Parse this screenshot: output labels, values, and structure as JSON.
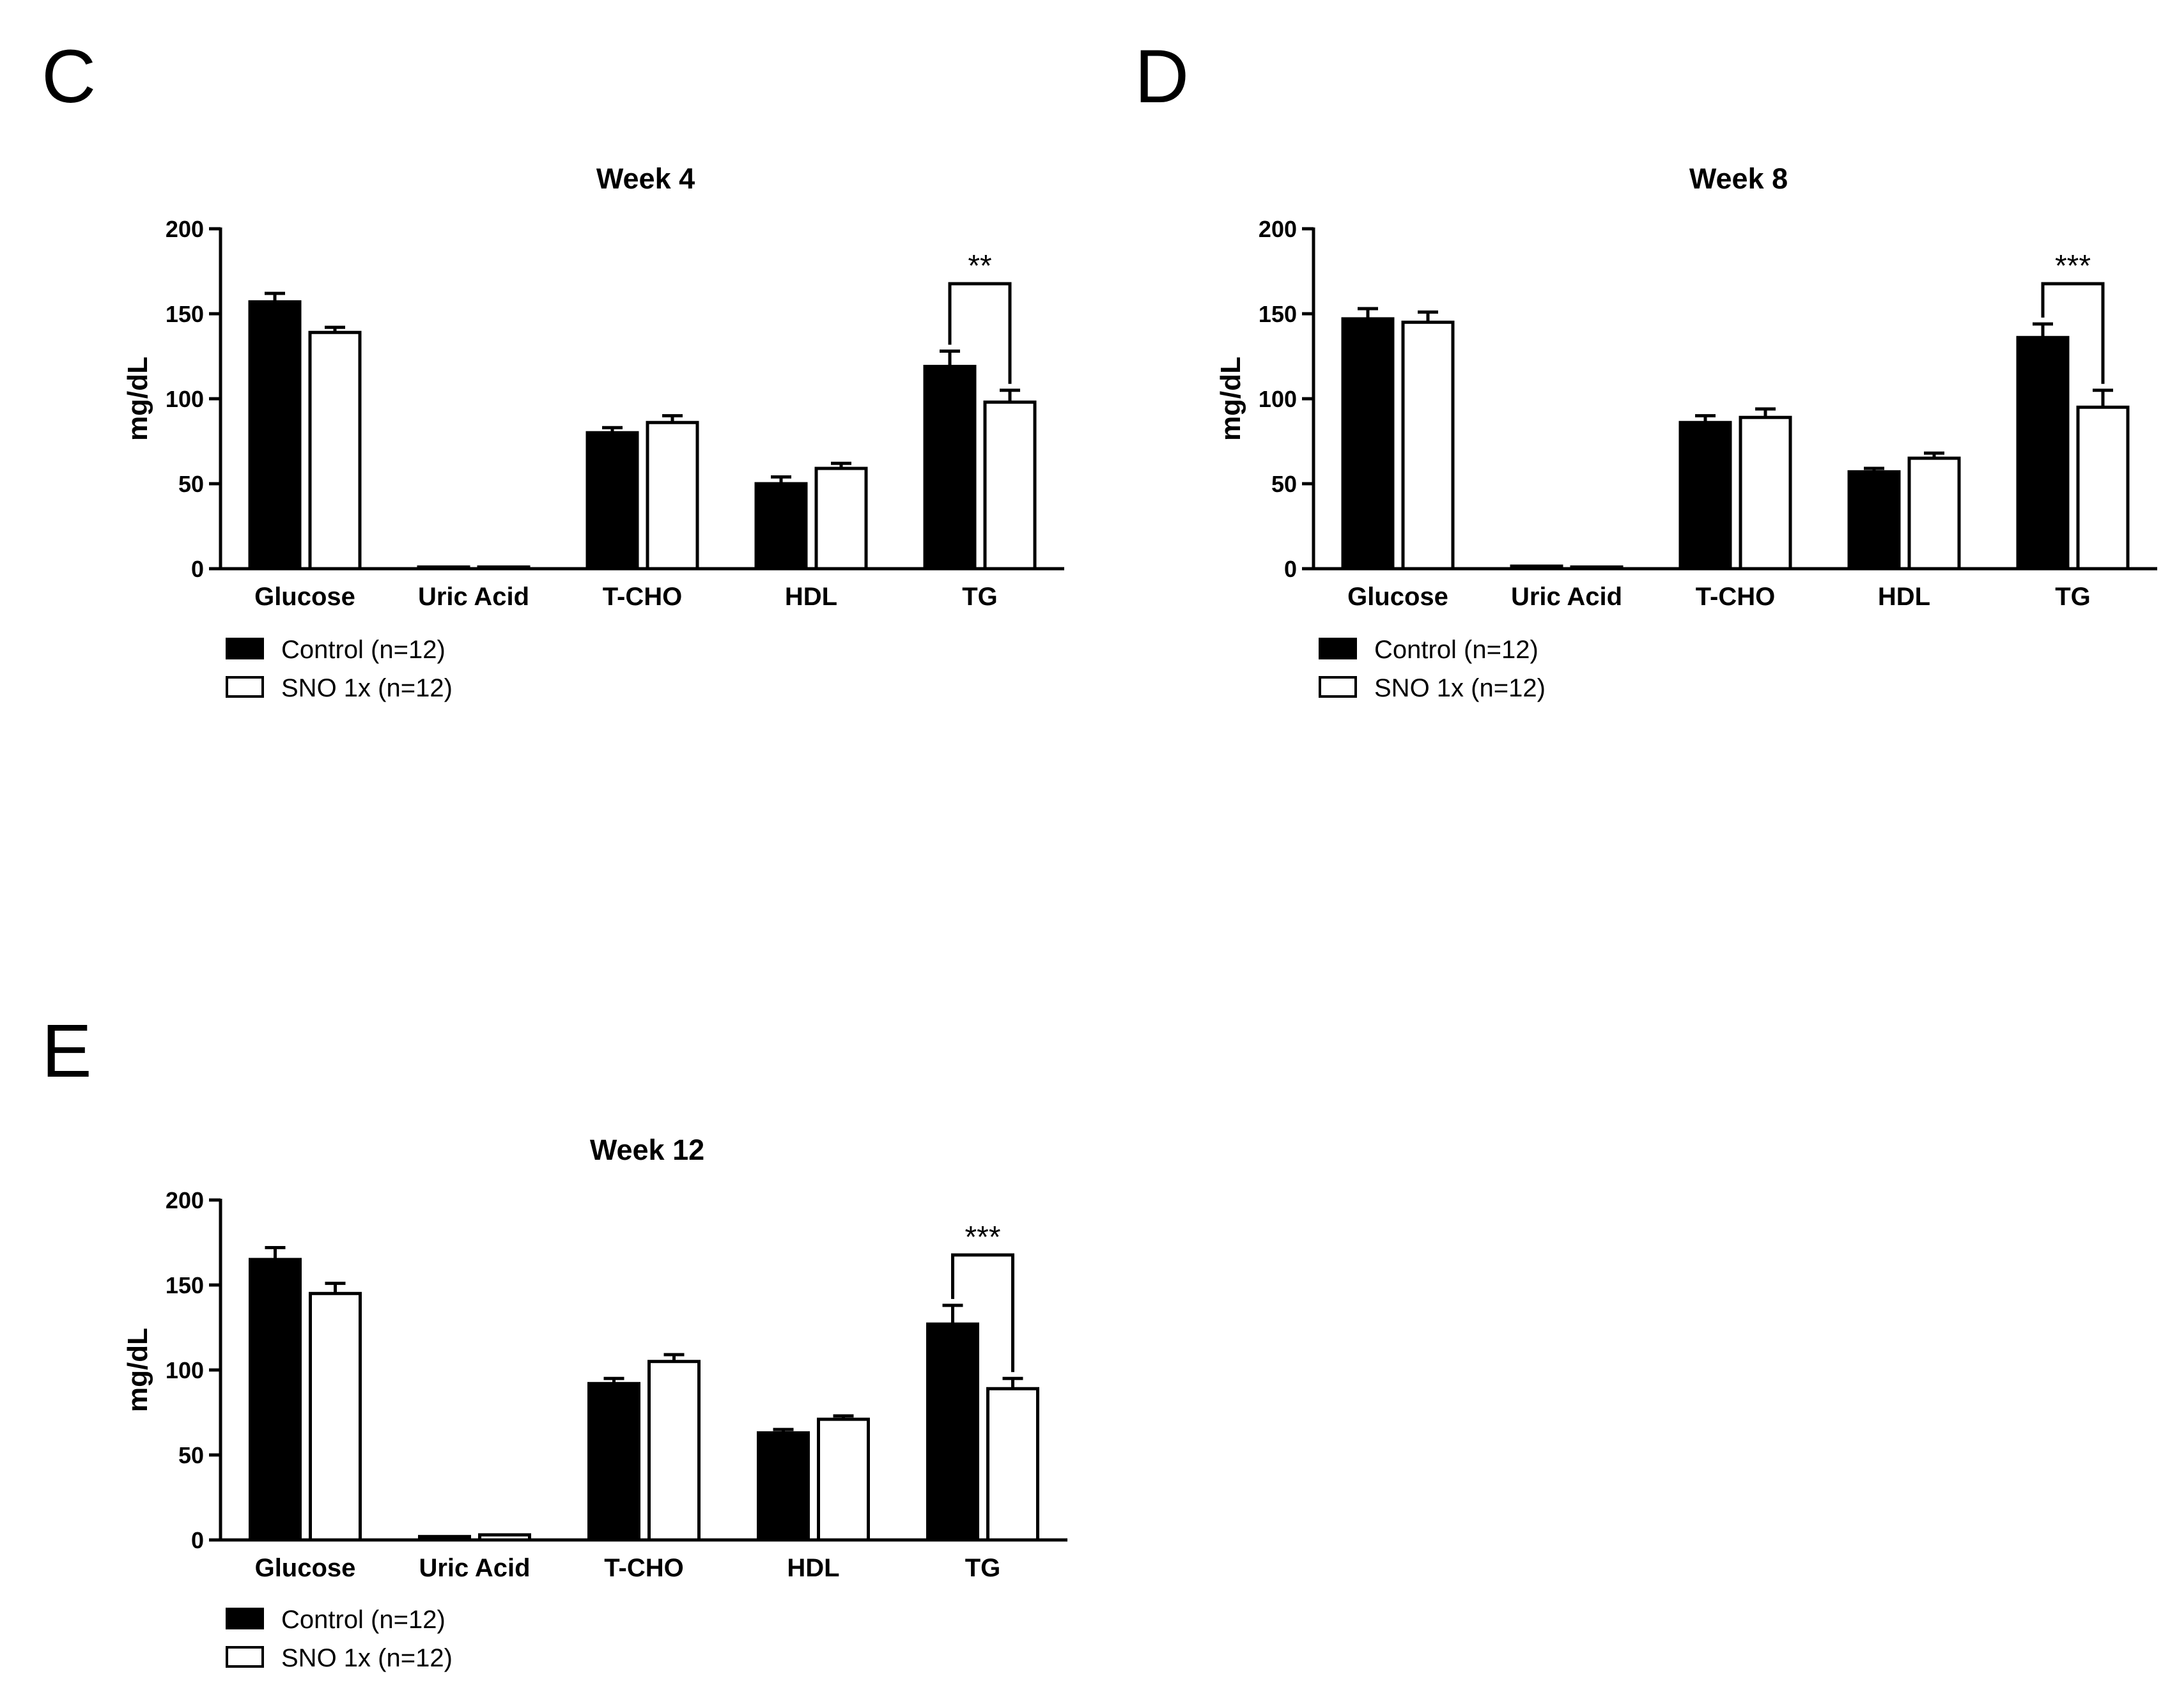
{
  "chart_data": [
    {
      "panel": "C",
      "type": "bar",
      "title": "Week 4",
      "ylabel": "mg/dL",
      "xlabel": "",
      "ylim": [
        0,
        200
      ],
      "yticks": [
        0,
        50,
        100,
        150,
        200
      ],
      "categories": [
        "Glucose",
        "Uric Acid",
        "T-CHO",
        "HDL",
        "TG"
      ],
      "series": [
        {
          "name": "Control (n=12)",
          "color": "#000000",
          "values": [
            157,
            1,
            80,
            50,
            119
          ],
          "errors": [
            5,
            0,
            3,
            4,
            9
          ]
        },
        {
          "name": "SNO 1x (n=12)",
          "color": "#ffffff",
          "values": [
            139,
            1,
            86,
            59,
            98
          ],
          "errors": [
            3,
            0,
            4,
            3,
            7
          ]
        }
      ],
      "significance": [
        {
          "category_index": 4,
          "label": "**"
        }
      ],
      "legend_position": "bottom-left"
    },
    {
      "panel": "D",
      "type": "bar",
      "title": "Week 8",
      "ylabel": "mg/dL",
      "xlabel": "",
      "ylim": [
        0,
        200
      ],
      "yticks": [
        0,
        50,
        100,
        150,
        200
      ],
      "categories": [
        "Glucose",
        "Uric Acid",
        "T-CHO",
        "HDL",
        "TG"
      ],
      "series": [
        {
          "name": "Control (n=12)",
          "color": "#000000",
          "values": [
            147,
            1.5,
            86,
            57,
            136
          ],
          "errors": [
            6,
            0,
            4,
            2,
            8
          ]
        },
        {
          "name": "SNO 1x (n=12)",
          "color": "#ffffff",
          "values": [
            145,
            1,
            89,
            65,
            95
          ],
          "errors": [
            6,
            0,
            5,
            3,
            10
          ]
        }
      ],
      "significance": [
        {
          "category_index": 4,
          "label": "***"
        }
      ],
      "legend_position": "bottom-left"
    },
    {
      "panel": "E",
      "type": "bar",
      "title": "Week 12",
      "ylabel": "mg/dL",
      "xlabel": "",
      "ylim": [
        0,
        200
      ],
      "yticks": [
        0,
        50,
        100,
        150,
        200
      ],
      "categories": [
        "Glucose",
        "Uric Acid",
        "T-CHO",
        "HDL",
        "TG"
      ],
      "series": [
        {
          "name": "Control (n=12)",
          "color": "#000000",
          "values": [
            165,
            2,
            92,
            63,
            127
          ],
          "errors": [
            7,
            0,
            3,
            2,
            11
          ]
        },
        {
          "name": "SNO 1x (n=12)",
          "color": "#ffffff",
          "values": [
            145,
            3,
            105,
            71,
            89
          ],
          "errors": [
            6,
            0,
            4,
            2,
            6
          ]
        }
      ],
      "significance": [
        {
          "category_index": 4,
          "label": "***"
        }
      ],
      "legend_position": "bottom-left"
    }
  ]
}
